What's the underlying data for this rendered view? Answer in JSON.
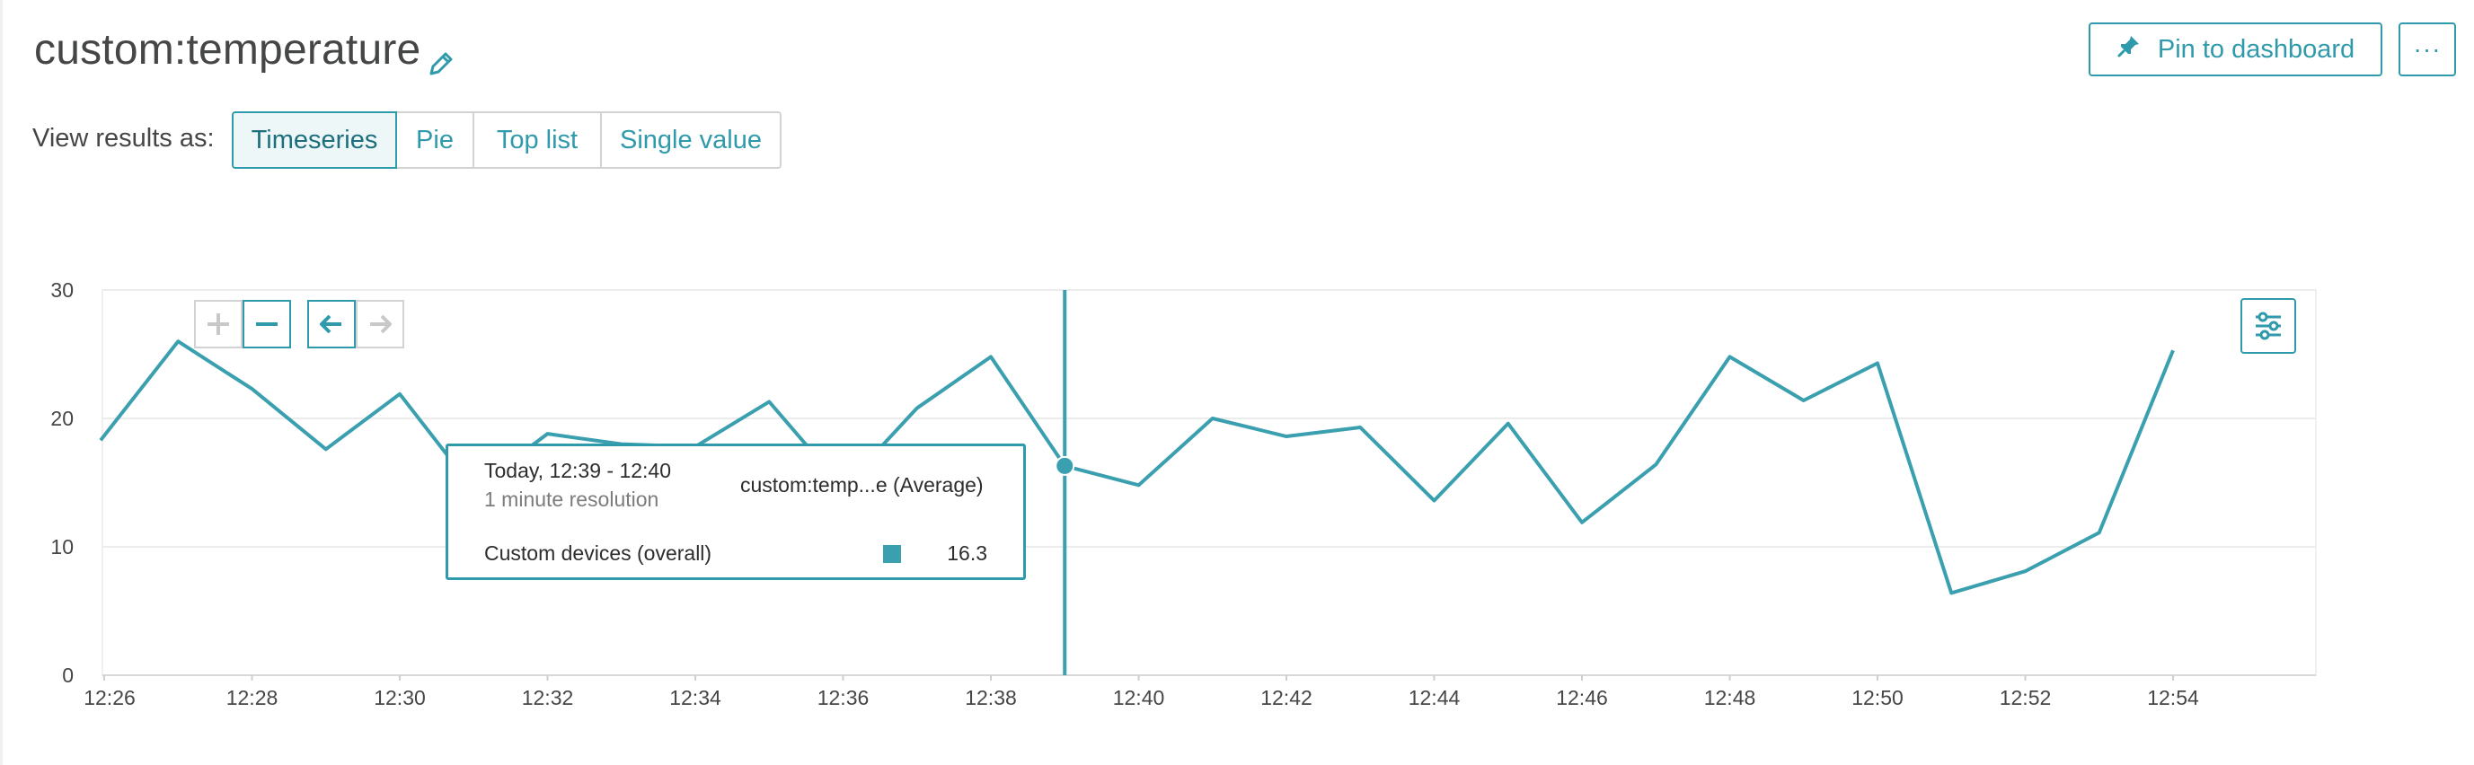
{
  "title": "custom:temperature",
  "header": {
    "pin_label": "Pin to dashboard",
    "more_label": "···"
  },
  "view": {
    "label": "View results as:",
    "options": [
      "Timeseries",
      "Pie",
      "Top list",
      "Single value"
    ],
    "selected": "Timeseries"
  },
  "icons": {
    "edit": "pencil-icon",
    "pin": "pin-icon",
    "zoom_in": "plus-icon",
    "zoom_out": "minus-icon",
    "back": "arrow-left-icon",
    "forward": "arrow-right-icon",
    "settings": "sliders-icon"
  },
  "colors": {
    "accent": "#2f9aab",
    "series": "#3a9fae",
    "grid": "#ececec",
    "axis_text": "#454646"
  },
  "tooltip": {
    "time": "Today, 12:39 - 12:40",
    "resolution": "1 minute resolution",
    "metric": "custom:temp...e (Average)",
    "entity": "Custom devices (overall)",
    "value": "16.3"
  },
  "chart_data": {
    "type": "line",
    "title": "",
    "xlabel": "",
    "ylabel": "",
    "ylim": [
      0,
      30
    ],
    "yticks": [
      0,
      10,
      20,
      30
    ],
    "grid": true,
    "x_tick_labels": [
      "12:26",
      "12:28",
      "12:30",
      "12:32",
      "12:34",
      "12:36",
      "12:38",
      "12:40",
      "12:42",
      "12:44",
      "12:46",
      "12:48",
      "12:50",
      "12:52",
      "12:54"
    ],
    "x_minutes": [
      0,
      1,
      2,
      3,
      4,
      5,
      6,
      7,
      8,
      9,
      10,
      11,
      12,
      13,
      14,
      15,
      16,
      17,
      18,
      19,
      20,
      21,
      22,
      23,
      24,
      25,
      26,
      27,
      28
    ],
    "x": [
      "12:26",
      "12:27",
      "12:28",
      "12:29",
      "12:30",
      "12:31",
      "12:32",
      "12:33",
      "12:34",
      "12:35",
      "12:36",
      "12:37",
      "12:38",
      "12:39",
      "12:40",
      "12:41",
      "12:42",
      "12:43",
      "12:44",
      "12:45",
      "12:46",
      "12:47",
      "12:48",
      "12:49",
      "12:50",
      "12:51",
      "12:52",
      "12:53",
      "12:54"
    ],
    "x_range_minutes": [
      0,
      30
    ],
    "series": [
      {
        "values": [
          18.3,
          26.0,
          22.3,
          17.6,
          21.9,
          14.5,
          18.8,
          18.0,
          17.8,
          21.3,
          14.6,
          20.8,
          24.8,
          16.3,
          14.8,
          20.0,
          18.6,
          19.3,
          13.6,
          19.6,
          11.9,
          16.4,
          24.8,
          21.4,
          24.3,
          6.4,
          8.1,
          11.1,
          25.3
        ]
      }
    ],
    "hover_index": 13
  }
}
